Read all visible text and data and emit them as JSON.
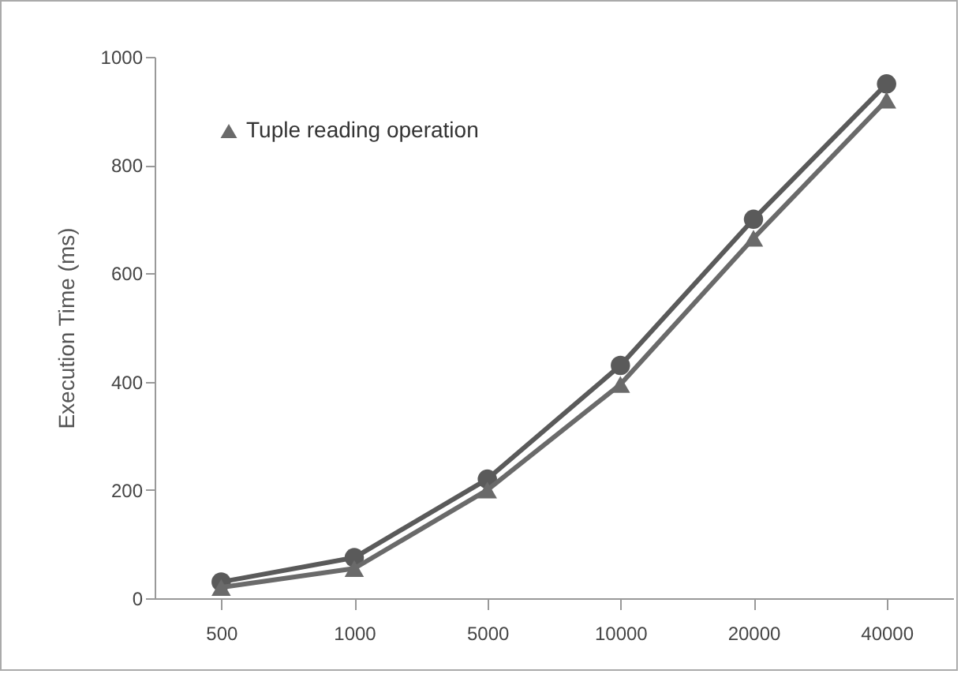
{
  "chart_data": {
    "type": "line",
    "ylabel": "Execution Time (ms)",
    "categories": [
      "500",
      "1000",
      "5000",
      "10000",
      "20000",
      "40000"
    ],
    "series": [
      {
        "color": "#5a5a5a",
        "marker": "circle",
        "values": [
          30,
          75,
          220,
          430,
          700,
          950
        ]
      },
      {
        "name": "Tuple reading operation",
        "color": "#6a6a6a",
        "marker": "triangle",
        "values": [
          20,
          55,
          200,
          395,
          665,
          920
        ]
      }
    ],
    "ylim": [
      0,
      1000
    ],
    "yticks": [
      0,
      200,
      400,
      600,
      800,
      1000
    ],
    "grid": false,
    "legend": "top left"
  }
}
